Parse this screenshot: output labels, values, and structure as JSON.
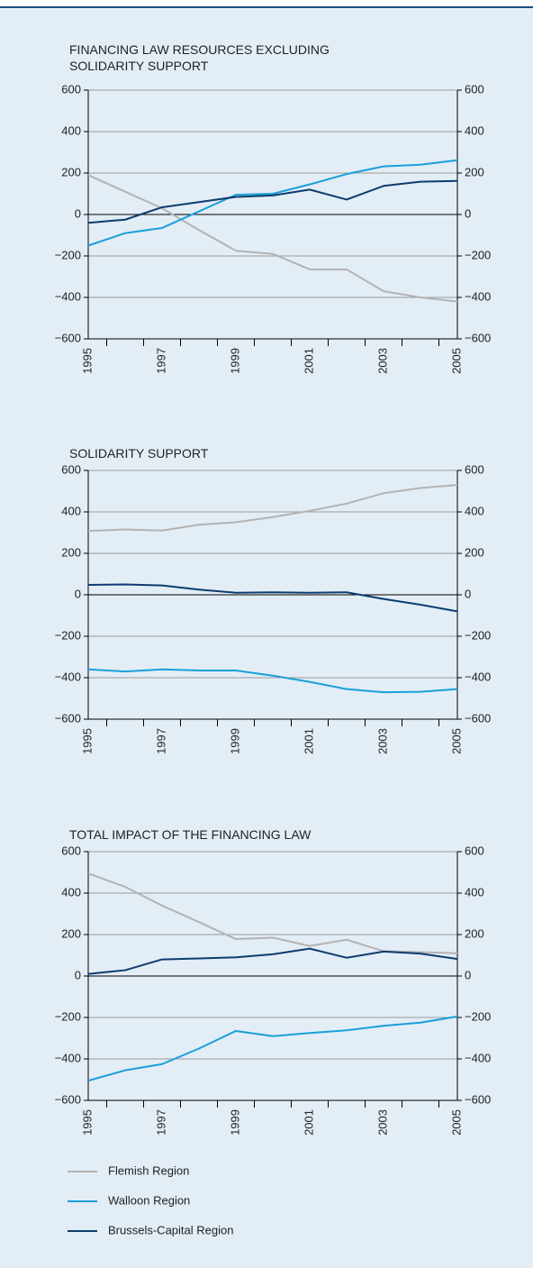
{
  "chart_data": [
    {
      "type": "line",
      "title": "FINANCING LAW RESOURCES EXCLUDING SOLIDARITY SUPPORT",
      "categories": [
        "1995",
        null,
        "1997",
        null,
        "1999",
        null,
        "2001",
        null,
        "2003",
        null,
        "2005"
      ],
      "series": [
        {
          "name": "Flemish Region",
          "color": "#b3b3b3",
          "values": [
            190,
            110,
            30,
            -75,
            -175,
            -190,
            -265,
            -265,
            -370,
            -400,
            -420
          ]
        },
        {
          "name": "Walloon Region",
          "color": "#1a9fd9",
          "values": [
            -150,
            -90,
            -65,
            15,
            95,
            100,
            145,
            195,
            232,
            240,
            262
          ]
        },
        {
          "name": "Brussels-Capital Region",
          "color": "#0c3c6e",
          "values": [
            -40,
            -25,
            35,
            60,
            85,
            92,
            120,
            72,
            138,
            158,
            162
          ]
        }
      ],
      "ylim": [
        -600,
        600
      ],
      "yticks": [
        {
          "value": -600,
          "label": "−600"
        },
        {
          "value": -400,
          "label": "−400"
        },
        {
          "value": -200,
          "label": "−200"
        },
        0,
        200,
        400,
        600
      ],
      "grid": true
    },
    {
      "type": "line",
      "title": "SOLIDARITY SUPPORT",
      "categories": [
        "1995",
        null,
        "1997",
        null,
        "1999",
        null,
        "2001",
        null,
        "2003",
        null,
        "2005"
      ],
      "series": [
        {
          "name": "Flemish Region",
          "color": "#b3b3b3",
          "values": [
            308,
            315,
            310,
            338,
            350,
            375,
            405,
            440,
            490,
            515,
            530
          ]
        },
        {
          "name": "Walloon Region",
          "color": "#1a9fd9",
          "values": [
            -360,
            -370,
            -360,
            -365,
            -365,
            -390,
            -420,
            -455,
            -470,
            -468,
            -455
          ]
        },
        {
          "name": "Brussels-Capital Region",
          "color": "#0c3c6e",
          "values": [
            48,
            50,
            45,
            25,
            10,
            12,
            10,
            12,
            -20,
            -48,
            -80
          ]
        }
      ],
      "ylim": [
        -600,
        600
      ],
      "yticks": [
        {
          "value": -600,
          "label": "−600"
        },
        {
          "value": -400,
          "label": "−400"
        },
        {
          "value": -200,
          "label": "−200"
        },
        0,
        200,
        400,
        600
      ],
      "grid": true
    },
    {
      "type": "line",
      "title": "TOTAL IMPACT OF THE FINANCING LAW",
      "categories": [
        "1995",
        null,
        "1997",
        null,
        "1999",
        null,
        "2001",
        null,
        "2003",
        null,
        "2005"
      ],
      "series": [
        {
          "name": "Flemish Region",
          "color": "#b3b3b3",
          "values": [
            495,
            430,
            340,
            260,
            178,
            185,
            145,
            175,
            120,
            115,
            110
          ]
        },
        {
          "name": "Walloon Region",
          "color": "#1a9fd9",
          "values": [
            -505,
            -455,
            -425,
            -350,
            -265,
            -290,
            -275,
            -262,
            -240,
            -225,
            -195
          ]
        },
        {
          "name": "Brussels-Capital Region",
          "color": "#0c3c6e",
          "values": [
            10,
            28,
            80,
            85,
            90,
            105,
            132,
            88,
            118,
            108,
            82
          ]
        }
      ],
      "ylim": [
        -600,
        600
      ],
      "yticks": [
        {
          "value": -600,
          "label": "−600"
        },
        {
          "value": -400,
          "label": "−400"
        },
        {
          "value": -200,
          "label": "−200"
        },
        0,
        200,
        400,
        600
      ],
      "grid": true
    }
  ]
}
